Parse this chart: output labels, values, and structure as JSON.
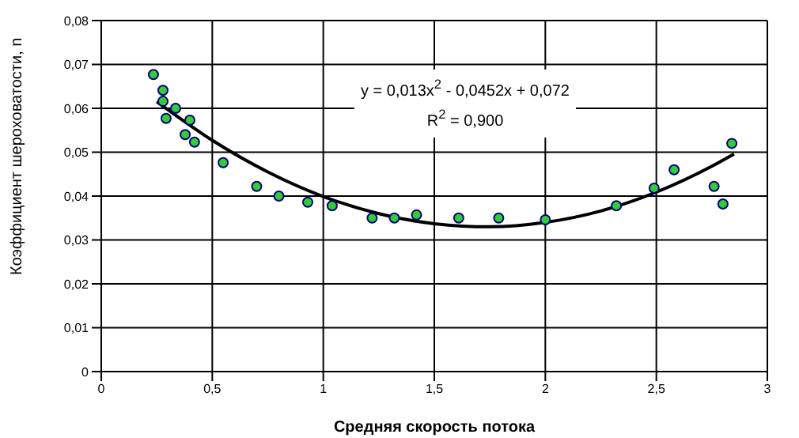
{
  "chart_data": {
    "type": "scatter",
    "xlabel": "Средняя скорость потока",
    "ylabel": "Коэффициент шероховатости, n",
    "xlim": [
      0,
      3
    ],
    "xticks": [
      0,
      {
        "value": 0.5,
        "label": "0,5"
      },
      1,
      {
        "value": 1.5,
        "label": "1,5"
      },
      2,
      {
        "value": 2.5,
        "label": "2,5"
      },
      3
    ],
    "ylim": [
      0,
      0.08
    ],
    "yticks": [
      0,
      {
        "value": 0.01,
        "label": "0,01"
      },
      {
        "value": 0.02,
        "label": "0,02"
      },
      {
        "value": 0.03,
        "label": "0,03"
      },
      {
        "value": 0.04,
        "label": "0,04"
      },
      {
        "value": 0.05,
        "label": "0,05"
      },
      {
        "value": 0.06,
        "label": "0,06"
      },
      {
        "value": 0.07,
        "label": "0,07"
      },
      {
        "value": 0.08,
        "label": "0,08"
      }
    ],
    "grid": true,
    "marker": "circle",
    "series": [
      {
        "color": "#33cc33",
        "x": [
          0.235,
          0.278,
          0.278,
          0.335,
          0.292,
          0.399,
          0.378,
          0.42,
          0.549,
          0.7,
          0.8,
          0.93,
          1.04,
          1.22,
          1.32,
          1.42,
          1.61,
          1.79,
          2.0,
          2.32,
          2.49,
          2.58,
          2.76,
          2.8,
          2.84
        ],
        "values": [
          0.0677,
          0.0641,
          0.0616,
          0.06,
          0.0577,
          0.0573,
          0.054,
          0.0523,
          0.0476,
          0.0422,
          0.04,
          0.0386,
          0.0378,
          0.035,
          0.035,
          0.0357,
          0.035,
          0.035,
          0.0346,
          0.0378,
          0.0418,
          0.046,
          0.0422,
          0.0382,
          0.052
        ]
      },
      {
        "type": "line",
        "color": "#000000",
        "marker": "none",
        "line_style": "solid",
        "x": [
          0.25,
          0.5,
          0.75,
          1.0,
          1.25,
          1.5,
          1.75,
          2.0,
          2.25,
          2.5,
          2.75,
          2.85
        ],
        "values": [
          0.0615,
          0.0527,
          0.0455,
          0.0399,
          0.036,
          0.0337,
          0.033,
          0.034,
          0.0366,
          0.0409,
          0.0468,
          0.0496
        ]
      }
    ],
    "annotations": [
      "y = 0,013x$^{2}$ - 0,0452x + 0,072",
      "R$^{2}$ = 0,900"
    ]
  }
}
